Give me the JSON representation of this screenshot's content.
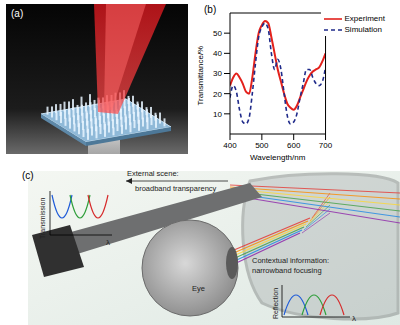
{
  "panels": [
    "(a)",
    "(b)",
    "(c)"
  ],
  "chart_data": {
    "type": "line",
    "x_label": "Wavelength/nm",
    "y_label": "Transmittance/%",
    "x": [
      400,
      410,
      420,
      430,
      440,
      450,
      460,
      470,
      480,
      490,
      500,
      510,
      520,
      530,
      540,
      550,
      560,
      570,
      580,
      590,
      600,
      610,
      620,
      630,
      640,
      650,
      660,
      670,
      680,
      690,
      700
    ],
    "series": [
      {
        "name": "Experiment",
        "color": "#e3211c",
        "line_style": "solid",
        "values": [
          24,
          28,
          30,
          28,
          25,
          21,
          20,
          28,
          40,
          50,
          54,
          56,
          55,
          48,
          40,
          32,
          26,
          20,
          15,
          13,
          12,
          14,
          18,
          22,
          26,
          29,
          31,
          32,
          33,
          36,
          40
        ]
      },
      {
        "name": "Simulation",
        "color": "#1f2a8a",
        "line_style": "dashed",
        "values": [
          18,
          24,
          21,
          12,
          6,
          5,
          8,
          20,
          35,
          48,
          53,
          55,
          52,
          40,
          32,
          37,
          32,
          20,
          9,
          5,
          6,
          10,
          18,
          25,
          32,
          32,
          28,
          25,
          24,
          26,
          33
        ]
      }
    ],
    "xlim": [
      400,
      700
    ],
    "xticks": [
      400,
      500,
      600,
      700
    ],
    "ylim": [
      0,
      60
    ],
    "yticks": [
      10,
      20,
      30,
      40,
      50
    ],
    "legend": "upper right"
  },
  "panel_c": {
    "external_scene": [
      "External scene:",
      "broadband transparency"
    ],
    "contextual_information": [
      "Contextual information:",
      "narrowband focusing"
    ],
    "eye": "Eye",
    "transmission_axis": {
      "y_label": "Transmission",
      "x_label": "λ"
    },
    "reflection_axis": {
      "y_label": "Reflection",
      "x_label": "λ"
    }
  }
}
